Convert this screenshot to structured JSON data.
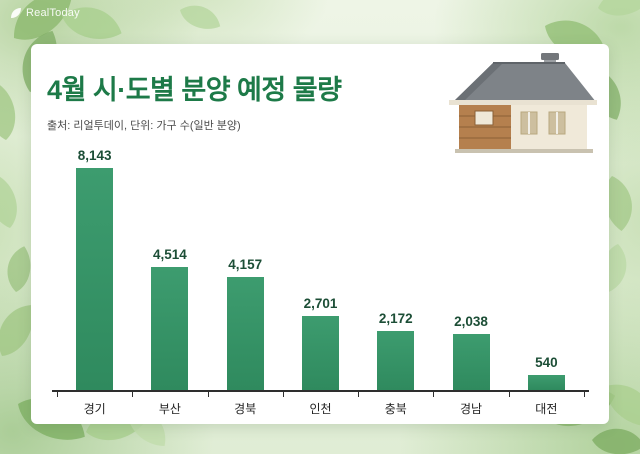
{
  "page": {
    "logo": "RealToday",
    "title": "4월 시·도별 분양 예정 물량",
    "source": "출처: 리얼투데이, 단위: 가구 수(일반 분양)"
  },
  "icons": {
    "logo": "leaf-icon",
    "decor": "house-illustration"
  },
  "colors": {
    "bar": "#3d9c6f",
    "bar_dark": "#2f8a5e",
    "title": "#1d7a48",
    "value_label": "#1c4e36"
  },
  "chart_data": {
    "type": "bar",
    "title": "4월 시·도별 분양 예정 물량",
    "source": "출처: 리얼투데이, 단위: 가구 수(일반 분양)",
    "categories": [
      "경기",
      "부산",
      "경북",
      "인천",
      "충북",
      "경남",
      "대전"
    ],
    "values": [
      8143,
      4514,
      4157,
      2701,
      2172,
      2038,
      540
    ],
    "value_labels": [
      "8,143",
      "4,514",
      "4,157",
      "2,701",
      "2,172",
      "2,038",
      "540"
    ],
    "xlabel": "",
    "ylabel": "가구 수",
    "ylim": [
      0,
      8500
    ],
    "grid": false,
    "legend": false,
    "bar_color": "#3d9c6f"
  }
}
